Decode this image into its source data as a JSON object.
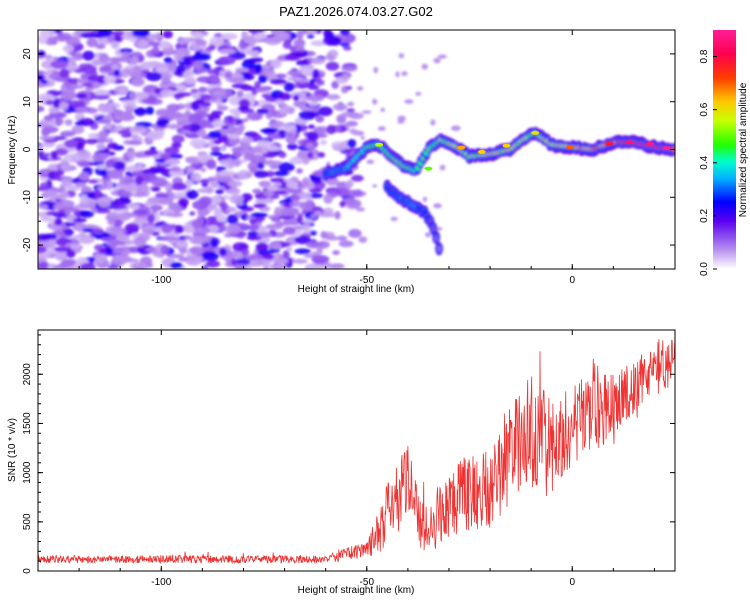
{
  "title": "PAZ1.2026.074.03.27.G02",
  "chart_data": [
    {
      "type": "heatmap",
      "title": "PAZ1.2026.074.03.27.G02",
      "xlabel": "Height of straight line (km)",
      "ylabel": "Frequency (Hz)",
      "xlim": [
        -130,
        25
      ],
      "ylim": [
        -25,
        25
      ],
      "xticks": [
        -100,
        -50,
        0
      ],
      "yticks": [
        -20,
        -10,
        0,
        10,
        20
      ],
      "colorbar": {
        "label": "Normalized spectral amplitude",
        "range": [
          0.0,
          0.9
        ],
        "ticks": [
          0.0,
          0.2,
          0.4,
          0.6,
          0.8
        ],
        "colormap": [
          "#ffffff",
          "#d8c8f8",
          "#8f5ee8",
          "#5a00f0",
          "#0000ff",
          "#00b4ff",
          "#00ffaa",
          "#22ff00",
          "#c8ff00",
          "#ffc800",
          "#ff3c00",
          "#ff0050",
          "#ff1e96"
        ]
      },
      "features": {
        "noise_region_x": [
          -130,
          -55
        ],
        "ridge": {
          "x": [
            -60,
            -55,
            -50,
            -47,
            -44,
            -41,
            -38,
            -35,
            -32,
            -28,
            -25,
            -20,
            -15,
            -12,
            -9,
            -5,
            0,
            5,
            10,
            15,
            20,
            25
          ],
          "freq": [
            -5,
            -4,
            0.5,
            1,
            -1.5,
            -3.5,
            -4.5,
            0,
            2,
            0.5,
            -1.5,
            -1,
            0,
            2,
            3.5,
            1,
            0.5,
            0,
            1.5,
            1.5,
            0.5,
            0
          ],
          "amplitude": [
            0.28,
            0.35,
            0.45,
            0.5,
            0.5,
            0.55,
            0.45,
            0.5,
            0.55,
            0.6,
            0.55,
            0.6,
            0.6,
            0.55,
            0.55,
            0.6,
            0.65,
            0.7,
            0.75,
            0.8,
            0.85,
            0.85
          ]
        },
        "branch": {
          "x": [
            -45,
            -42,
            -39,
            -36,
            -34,
            -32
          ],
          "freq": [
            -8,
            -10,
            -11.5,
            -13,
            -16,
            -22
          ],
          "amplitude": [
            0.25,
            0.3,
            0.35,
            0.25,
            0.15,
            0.1
          ]
        }
      }
    },
    {
      "type": "line",
      "series": [
        {
          "name": "SNR",
          "color": "#ee3333"
        }
      ],
      "xlabel": "Height of straight line (km)",
      "ylabel": "SNR (10 * v/v)",
      "xlim": [
        -130,
        25
      ],
      "ylim": [
        0,
        2450
      ],
      "xticks": [
        -100,
        -50,
        0
      ],
      "yticks": [
        0,
        500,
        1000,
        1500,
        2000
      ],
      "envelope": {
        "x": [
          -130,
          -60,
          -50,
          -47,
          -44,
          -40,
          -37,
          -35,
          -30,
          -25,
          -20,
          -15,
          -10,
          -5,
          0,
          5,
          10,
          15,
          20,
          25
        ],
        "mean": [
          120,
          120,
          220,
          400,
          700,
          850,
          520,
          420,
          700,
          800,
          850,
          1250,
          1400,
          1250,
          1500,
          1600,
          1650,
          1850,
          2050,
          2150
        ],
        "spread": [
          40,
          40,
          90,
          250,
          350,
          420,
          300,
          280,
          350,
          400,
          420,
          550,
          600,
          500,
          420,
          400,
          400,
          350,
          300,
          250
        ]
      }
    }
  ]
}
